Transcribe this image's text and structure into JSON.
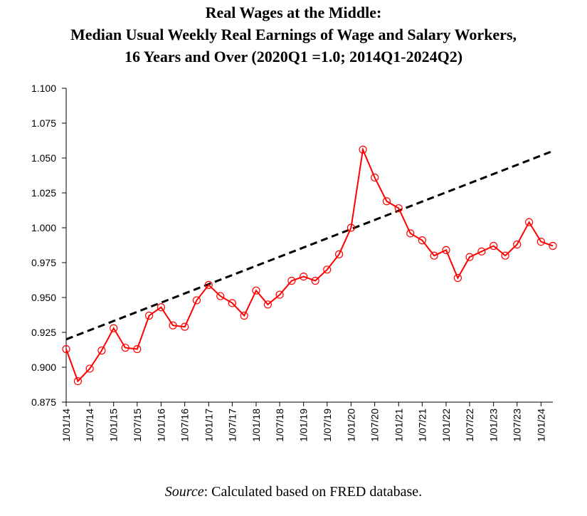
{
  "chart_data": {
    "type": "line",
    "title_lines": [
      "Real Wages at the Middle:",
      "Median Usual Weekly Real Earnings of Wage and Salary Workers,",
      "16 Years and Over (2020Q1 =1.0; 2014Q1-2024Q2)"
    ],
    "xlabel": "",
    "ylabel": "",
    "ylim": [
      0.875,
      1.1
    ],
    "y_ticks": [
      "0.875",
      "0.900",
      "0.925",
      "0.950",
      "0.975",
      "1.000",
      "1.025",
      "1.050",
      "1.075",
      "1.100"
    ],
    "x_tick_labels": [
      "1/01/14",
      "1/07/14",
      "1/01/15",
      "1/07/15",
      "1/01/16",
      "1/07/16",
      "1/01/17",
      "1/07/17",
      "1/01/18",
      "1/07/18",
      "1/01/19",
      "1/07/19",
      "1/01/20",
      "1/07/20",
      "1/01/21",
      "1/07/21",
      "1/01/22",
      "1/07/22",
      "1/01/23",
      "1/07/23",
      "1/01/24"
    ],
    "x": [
      "2014-01-01",
      "2014-04-01",
      "2014-07-01",
      "2014-10-01",
      "2015-01-01",
      "2015-04-01",
      "2015-07-01",
      "2015-10-01",
      "2016-01-01",
      "2016-04-01",
      "2016-07-01",
      "2016-10-01",
      "2017-01-01",
      "2017-04-01",
      "2017-07-01",
      "2017-10-01",
      "2018-01-01",
      "2018-04-01",
      "2018-07-01",
      "2018-10-01",
      "2019-01-01",
      "2019-04-01",
      "2019-07-01",
      "2019-10-01",
      "2020-01-01",
      "2020-04-01",
      "2020-07-01",
      "2020-10-01",
      "2021-01-01",
      "2021-04-01",
      "2021-07-01",
      "2021-10-01",
      "2022-01-01",
      "2022-04-01",
      "2022-07-01",
      "2022-10-01",
      "2023-01-01",
      "2023-04-01",
      "2023-07-01",
      "2023-10-01",
      "2024-01-01",
      "2024-04-01"
    ],
    "series": [
      {
        "color": "#ff0000",
        "marker": "open-circle",
        "values": [
          0.913,
          0.89,
          0.899,
          0.912,
          0.928,
          0.914,
          0.913,
          0.937,
          0.943,
          0.93,
          0.929,
          0.948,
          0.959,
          0.951,
          0.946,
          0.937,
          0.955,
          0.945,
          0.952,
          0.962,
          0.965,
          0.962,
          0.97,
          0.981,
          1.0,
          1.056,
          1.036,
          1.019,
          1.014,
          0.996,
          0.991,
          0.98,
          0.984,
          0.964,
          0.979,
          0.983,
          0.987,
          0.98,
          0.988,
          1.004,
          0.99,
          0.987
        ]
      },
      {
        "color": "#000000",
        "style": "dashed",
        "trend_x": [
          "2014-01-01",
          "2024-04-01"
        ],
        "trend_values": [
          0.92,
          1.055
        ]
      }
    ],
    "grid": false,
    "legend": "none"
  },
  "source": {
    "label": "Source",
    "text": ": Calculated based on FRED database."
  }
}
